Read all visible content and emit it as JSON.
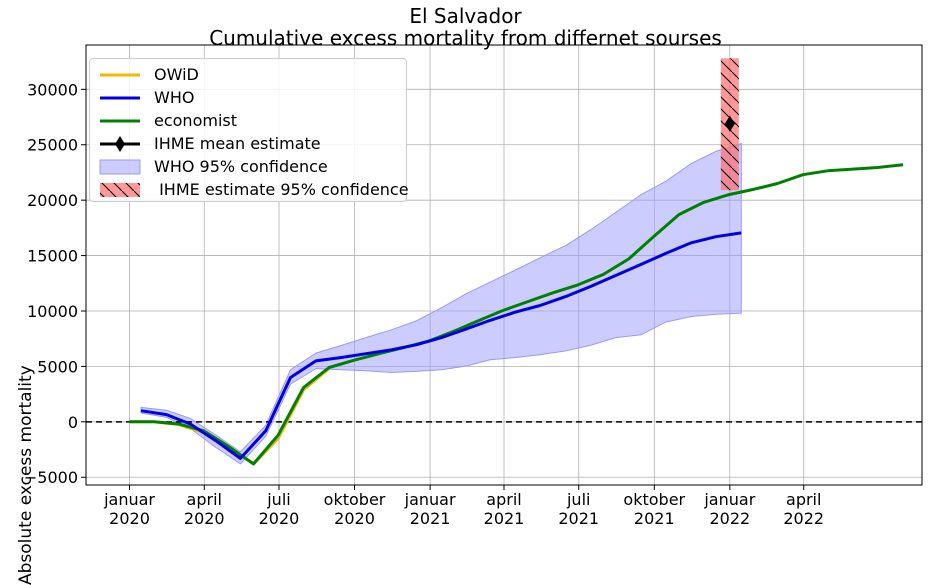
{
  "chart_data": {
    "type": "line",
    "title": "El Salvador",
    "subtitle": "Cumulative excess mortality from differnet sourses",
    "xlabel": "",
    "ylabel": "Absolute excess mortality",
    "xlim": [
      "2019-11-09",
      "2022-08-23"
    ],
    "ylim": [
      -5700,
      34000
    ],
    "grid": true,
    "legend_position": "top-left",
    "x_ticks": [
      {
        "date": "2020-01-01",
        "label": [
          "januar",
          "2020"
        ]
      },
      {
        "date": "2020-04-01",
        "label": [
          "april",
          "2020"
        ]
      },
      {
        "date": "2020-07-01",
        "label": [
          "juli",
          "2020"
        ]
      },
      {
        "date": "2020-10-01",
        "label": [
          "oktober",
          "2020"
        ]
      },
      {
        "date": "2021-01-01",
        "label": [
          "januar",
          "2021"
        ]
      },
      {
        "date": "2021-04-01",
        "label": [
          "april",
          "2021"
        ]
      },
      {
        "date": "2021-07-01",
        "label": [
          "juli",
          "2021"
        ]
      },
      {
        "date": "2021-10-01",
        "label": [
          "oktober",
          "2021"
        ]
      },
      {
        "date": "2022-01-01",
        "label": [
          "januar",
          "2022"
        ]
      },
      {
        "date": "2022-04-01",
        "label": [
          "april",
          "2022"
        ]
      }
    ],
    "y_ticks": [
      -5000,
      0,
      5000,
      10000,
      15000,
      20000,
      25000,
      30000
    ],
    "zero_line": {
      "y": 0,
      "style": "dashed",
      "color": "#000000"
    },
    "series": [
      {
        "name": "OWiD",
        "color": "#f5b800",
        "points": [
          [
            "2020-01-01",
            0
          ],
          [
            "2020-01-31",
            0
          ],
          [
            "2020-03-01",
            -250
          ],
          [
            "2020-03-31",
            -950
          ],
          [
            "2020-04-30",
            -2300
          ],
          [
            "2020-05-31",
            -3800
          ],
          [
            "2020-06-30",
            -1500
          ],
          [
            "2020-07-31",
            2900
          ],
          [
            "2020-08-31",
            4800
          ]
        ]
      },
      {
        "name": "WHO",
        "color": "#0000e0",
        "points": [
          [
            "2020-01-15",
            1000
          ],
          [
            "2020-02-15",
            650
          ],
          [
            "2020-03-15",
            -200
          ],
          [
            "2020-04-15",
            -1700
          ],
          [
            "2020-05-15",
            -3300
          ],
          [
            "2020-06-15",
            -800
          ],
          [
            "2020-07-15",
            4000
          ],
          [
            "2020-08-15",
            5500
          ],
          [
            "2020-09-15",
            5800
          ],
          [
            "2020-10-15",
            6150
          ],
          [
            "2020-11-15",
            6500
          ],
          [
            "2020-12-15",
            6950
          ],
          [
            "2021-01-15",
            7600
          ],
          [
            "2021-02-15",
            8400
          ],
          [
            "2021-03-15",
            9150
          ],
          [
            "2021-04-15",
            9900
          ],
          [
            "2021-05-15",
            10500
          ],
          [
            "2021-06-15",
            11300
          ],
          [
            "2021-07-15",
            12200
          ],
          [
            "2021-08-15",
            13200
          ],
          [
            "2021-09-15",
            14200
          ],
          [
            "2021-10-15",
            15200
          ],
          [
            "2021-11-15",
            16150
          ],
          [
            "2021-12-15",
            16700
          ],
          [
            "2022-01-15",
            17050
          ]
        ]
      },
      {
        "name": "economist",
        "color": "#008000",
        "points": [
          [
            "2020-01-01",
            0
          ],
          [
            "2020-01-31",
            0
          ],
          [
            "2020-03-01",
            -200
          ],
          [
            "2020-03-31",
            -800
          ],
          [
            "2020-04-30",
            -2200
          ],
          [
            "2020-05-31",
            -3800
          ],
          [
            "2020-06-30",
            -1200
          ],
          [
            "2020-07-31",
            3100
          ],
          [
            "2020-08-31",
            4900
          ],
          [
            "2020-09-30",
            5550
          ],
          [
            "2020-10-31",
            6150
          ],
          [
            "2020-11-30",
            6700
          ],
          [
            "2020-12-31",
            7300
          ],
          [
            "2021-01-31",
            8200
          ],
          [
            "2021-02-28",
            9100
          ],
          [
            "2021-03-31",
            10050
          ],
          [
            "2021-04-30",
            10850
          ],
          [
            "2021-05-31",
            11650
          ],
          [
            "2021-06-30",
            12350
          ],
          [
            "2021-07-31",
            13300
          ],
          [
            "2021-08-31",
            14700
          ],
          [
            "2021-09-30",
            16700
          ],
          [
            "2021-10-31",
            18700
          ],
          [
            "2021-11-30",
            19800
          ],
          [
            "2021-12-31",
            20500
          ],
          [
            "2022-01-31",
            21000
          ],
          [
            "2022-02-28",
            21500
          ],
          [
            "2022-03-31",
            22300
          ],
          [
            "2022-04-30",
            22650
          ],
          [
            "2022-05-31",
            22800
          ],
          [
            "2022-06-30",
            22950
          ],
          [
            "2022-07-31",
            23200
          ]
        ]
      }
    ],
    "who_confidence": {
      "name": "WHO 95% confidence",
      "color": "#9999ff",
      "points": [
        [
          "2020-01-15",
          800,
          1300
        ],
        [
          "2020-02-15",
          400,
          1050
        ],
        [
          "2020-03-15",
          -600,
          300
        ],
        [
          "2020-04-15",
          -2300,
          -1200
        ],
        [
          "2020-05-15",
          -3800,
          -2700
        ],
        [
          "2020-06-15",
          -1300,
          -300
        ],
        [
          "2020-07-15",
          3400,
          4700
        ],
        [
          "2020-08-15",
          4800,
          6200
        ],
        [
          "2020-09-15",
          4700,
          6900
        ],
        [
          "2020-10-15",
          4600,
          7600
        ],
        [
          "2020-11-15",
          4450,
          8300
        ],
        [
          "2020-12-15",
          4550,
          9100
        ],
        [
          "2021-01-15",
          4700,
          10300
        ],
        [
          "2021-02-15",
          5050,
          11600
        ],
        [
          "2021-03-15",
          5600,
          12600
        ],
        [
          "2021-04-15",
          5800,
          13700
        ],
        [
          "2021-05-15",
          6050,
          14800
        ],
        [
          "2021-06-15",
          6400,
          15900
        ],
        [
          "2021-07-15",
          6900,
          17300
        ],
        [
          "2021-08-15",
          7600,
          18900
        ],
        [
          "2021-09-15",
          7850,
          20500
        ],
        [
          "2021-10-15",
          9000,
          21700
        ],
        [
          "2021-11-15",
          9500,
          23300
        ],
        [
          "2021-12-15",
          9700,
          24400
        ],
        [
          "2022-01-15",
          9800,
          25100
        ]
      ]
    },
    "ihme": {
      "mean_label": "IHME mean estimate",
      "ci_label": " IHME estimate 95% confidence",
      "date": "2022-01-01",
      "mean": 26900,
      "ci_low": 20900,
      "ci_high": 32800,
      "marker_color": "#000000",
      "ci_color": "#ff6e6e"
    }
  }
}
